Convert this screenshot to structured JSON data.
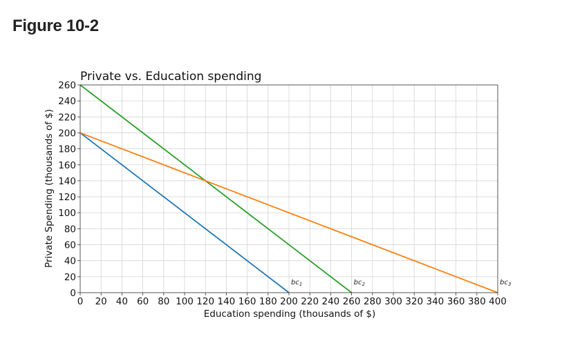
{
  "figure_heading": "Figure 10-2",
  "chart_data": {
    "type": "line",
    "title": "Private vs. Education spending",
    "xlabel": "Education spending (thousands of $)",
    "ylabel": "Private Spending (thousands of $)",
    "xlim": [
      0,
      400
    ],
    "ylim": [
      0,
      260
    ],
    "x_ticks": [
      0,
      20,
      40,
      60,
      80,
      100,
      120,
      140,
      160,
      180,
      200,
      220,
      240,
      260,
      280,
      300,
      320,
      340,
      360,
      380,
      400
    ],
    "y_ticks": [
      0,
      20,
      40,
      60,
      80,
      100,
      120,
      140,
      160,
      180,
      200,
      220,
      240,
      260
    ],
    "grid": true,
    "series": [
      {
        "name": "bc1",
        "label_base": "bc",
        "label_sub": "1",
        "color": "#1f77b4",
        "points": [
          [
            0,
            200
          ],
          [
            200,
            0
          ]
        ]
      },
      {
        "name": "bc2",
        "label_base": "bc",
        "label_sub": "2",
        "color": "#2ca02c",
        "points": [
          [
            0,
            260
          ],
          [
            260,
            0
          ]
        ]
      },
      {
        "name": "bc3",
        "label_base": "bc",
        "label_sub": "3",
        "color": "#ff7f0e",
        "points": [
          [
            0,
            200
          ],
          [
            400,
            0
          ]
        ]
      }
    ]
  }
}
